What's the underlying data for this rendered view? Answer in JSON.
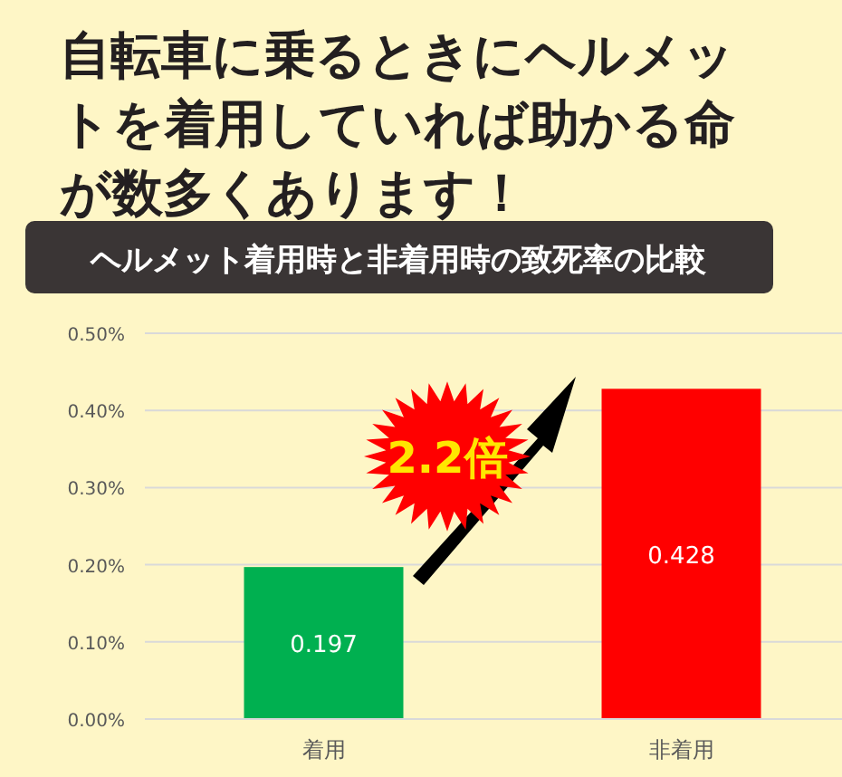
{
  "chart_data": {
    "type": "bar",
    "title": "自転車に乗るときにヘルメットを着用していれば助かる命が数多くあります！",
    "subtitle": "ヘルメット着用時と非着用時の致死率の比較",
    "annotations": [
      "2.2倍"
    ],
    "categories": [
      "着用",
      "非着用"
    ],
    "values": [
      0.197,
      0.428
    ],
    "colors": [
      "#00b050",
      "#ff0000"
    ],
    "ylim": [
      0,
      0.5
    ],
    "yticks": [
      {
        "value": 0,
        "label": "0.00%"
      },
      {
        "value": 0.1,
        "label": "0.10%"
      },
      {
        "value": 0.2,
        "label": "0.20%"
      },
      {
        "value": 0.3,
        "label": "0.30%"
      },
      {
        "value": 0.4,
        "label": "0.40%"
      },
      {
        "value": 0.5,
        "label": "0.50%"
      }
    ],
    "grid": "y",
    "data_labels": true
  }
}
